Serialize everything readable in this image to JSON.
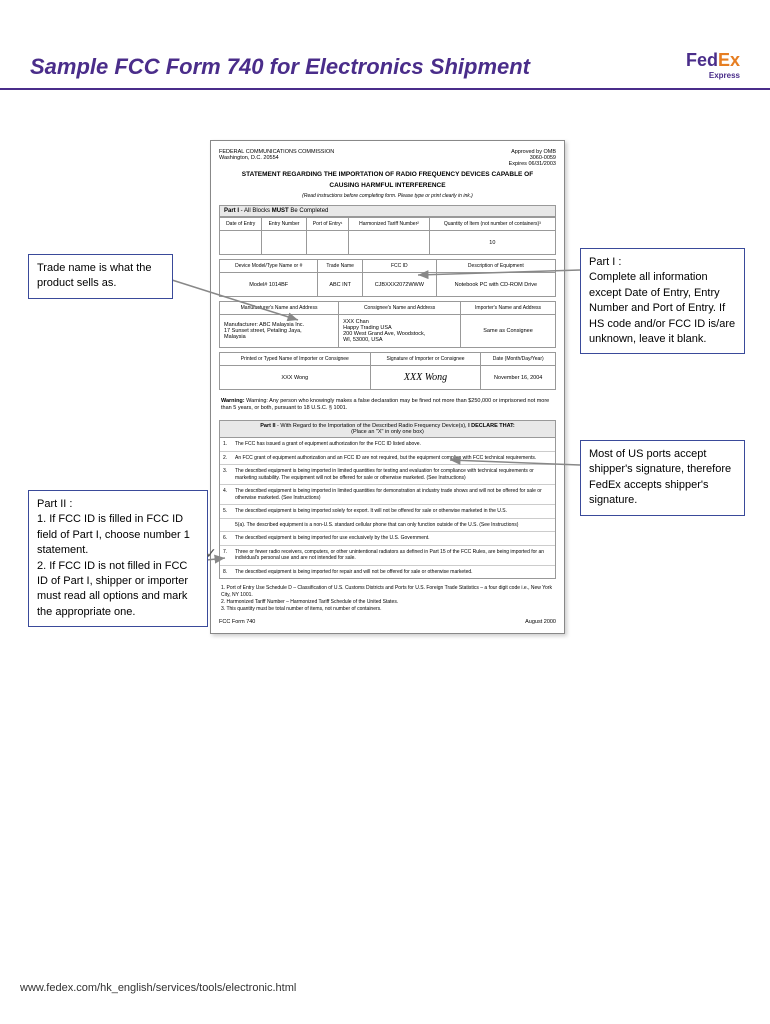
{
  "page": {
    "title": "Sample FCC Form 740 for Electronics Shipment",
    "footer_url": "www.fedex.com/hk_english/services/tools/electronic.html"
  },
  "logo": {
    "fed": "Fed",
    "ex": "Ex",
    "sub": "Express"
  },
  "callouts": {
    "trade_name": "Trade name is what the product sells as.",
    "part1": "Part I :\nComplete all information except Date of Entry, Entry Number and Port of Entry. If HS code and/or FCC ID is/are unknown, leave it blank.",
    "part2": "Part II :\n1. If FCC ID is filled in FCC ID field of Part I, choose number 1 statement.\n2. If FCC ID is not filled in FCC ID of Part I, shipper or importer must read all options and mark the appropriate one.",
    "signature": "Most of US ports accept shipper's signature, therefore FedEx accepts shipper's signature."
  },
  "form": {
    "agency": "FEDERAL COMMUNICATIONS COMMISSION",
    "address": "Washington, D.C. 20554",
    "approved": "Approved by OMB",
    "omb": "3060-0059",
    "expires": "Expires   06/31/2003",
    "statement1": "STATEMENT REGARDING THE IMPORTATION OF RADIO FREQUENCY DEVICES CAPABLE OF",
    "statement2": "CAUSING HARMFUL INTERFERENCE",
    "instructions": "(Read instructions before completing form. Please type or print clearly in ink.)",
    "part1_label": "Part I - All Blocks MUST Be Completed",
    "headers1": [
      "Date of Entry",
      "Entry Number",
      "Port of Entry¹",
      "Harmonized Tariff Number²",
      "Quantity of Item (not number of containers)³"
    ],
    "qty": "10",
    "headers2": [
      "Device Model/Type Name or #",
      "Trade Name",
      "FCC ID",
      "Description of Equipment"
    ],
    "row2": [
      "Model# 1014BF",
      "ABC INT",
      "CJBXXX2072WWW",
      "Notebook PC with CD-ROM Drive"
    ],
    "headers3": [
      "Manufacturer's Name and Address",
      "Consignee's Name and Address",
      "Importer's Name and Address"
    ],
    "mfr": "Manufacturer: ABC Malaysia Inc.\n17 Sunset street, Petaling Jaya,\nMalaysia",
    "consignee": "XXX Chan\nHappy Trading USA\n200 West Grand Ave, Woodstock,\nWI, 53000, USA",
    "importer": "Same as Consignee",
    "headers4": [
      "Printed or Typed Name of Importer or Consignee",
      "Signature of Importer or Consignee",
      "Date (Month/Day/Year)"
    ],
    "signer": "XXX Wong",
    "signature": "XXX Wong",
    "date": "November 16, 2004",
    "warning": "Warning: Any person who knowingly makes a false declaration may be fined not more than $250,000 or imprisoned not more than 5 years, or both, pursuant to 18 U.S.C. § 1001.",
    "part2_label": "Part II - With Regard to the Importation of the Described Radio Frequency Device(s), I DECLARE THAT:",
    "part2_sub": "(Place an \"X\" in only one box)",
    "declarations": [
      "The FCC has issued a grant of equipment authorization for the FCC ID listed above.",
      "An FCC grant of equipment authorization and an FCC ID are not required, but the equipment complies with FCC technical requirements.",
      "The described equipment is being imported in limited quantities for testing and evaluation for compliance with technical requirements or marketing suitability. The equipment will not be offered for sale or otherwise marketed. (See Instructions)",
      "The described equipment is being imported in limited quantities for demonstration at industry trade shows and will not be offered for sale or otherwise marketed. (See Instructions)",
      "The described equipment is being imported solely for export. It will not be offered for sale or otherwise marketed in the U.S.",
      "5(a).  The described equipment is a non-U.S. standard cellular phone that can only function outside of the U.S. (See Instructions)",
      "The described equipment is being imported for use exclusively by the U.S. Government.",
      "Three or fewer radio receivers, computers, or other unintentional radiators as defined in Part 15 of the FCC Rules, are being imported for an individual's personal use and are not intended for sale.",
      "The described equipment is being imported for repair and will not be offered for sale or otherwise marketed."
    ],
    "footnotes": [
      "Port of Entry Use Schedule D – Classification of U.S. Customs Districts and Ports for U.S. Foreign Trade Statistics – a four digit code i.e., New York City, NY 1001.",
      "Harmonized Tariff Number – Harmonized Tariff Schedule of the United States.",
      "This quantity must be total number of items, not number of containers."
    ],
    "form_id": "FCC Form 740",
    "form_date": "August 2000"
  }
}
